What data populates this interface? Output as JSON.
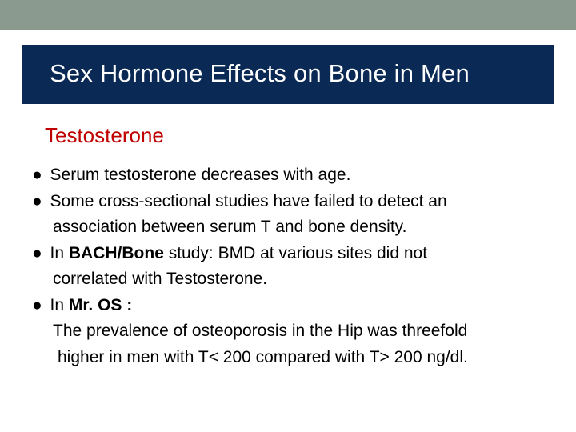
{
  "colors": {
    "top_bar": "#8a9a8f",
    "title_bg": "#0a2a55",
    "title_text": "#ffffff",
    "subtitle_text": "#c00000",
    "body_text": "#000000",
    "page_bg": "#ffffff"
  },
  "typography": {
    "title_fontsize": 31,
    "subtitle_fontsize": 26,
    "body_fontsize": 21,
    "font_family": "Arial"
  },
  "title": "Sex Hormone Effects on Bone in Men",
  "subtitle": "Testosterone",
  "bullets": {
    "b1": "Serum testosterone decreases with age.",
    "b2_l1": "Some cross-sectional studies have failed to detect an",
    "b2_l2": "association between serum T and bone density.",
    "b3_prefix": "In ",
    "b3_bold": "BACH/Bone",
    "b3_rest": " study: BMD at various sites did not",
    "b3_l2": "correlated with Testosterone.",
    "b4_prefix": "In ",
    "b4_bold": "Mr. OS :",
    "b4_l2": "The prevalence of osteoporosis in the Hip was threefold",
    "b4_l3": "higher in men with T< 200  compared with T> 200 ng/dl."
  },
  "bullet_glyph": "●"
}
